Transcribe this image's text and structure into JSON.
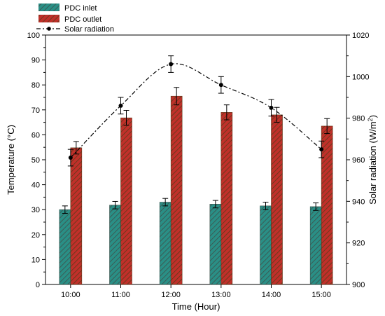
{
  "chart_data": {
    "type": "bar",
    "categories": [
      "10:00",
      "11:00",
      "12:00",
      "13:00",
      "14:00",
      "15:00"
    ],
    "xlabel": "Time (Hour)",
    "ylabel": "Temperature (°C)",
    "y2label_prefix": "Solar radiation (W/m",
    "y2label_sup": "2",
    "y2label_suffix": ")",
    "ylim": [
      0,
      100
    ],
    "y2lim": [
      900,
      1020
    ],
    "yticks": [
      "0",
      "10",
      "20",
      "30",
      "40",
      "50",
      "60",
      "70",
      "80",
      "90",
      "100"
    ],
    "y2ticks": [
      "900",
      "920",
      "940",
      "960",
      "980",
      "1000",
      "1020"
    ],
    "grid": false,
    "legend_position": "top-left",
    "series": [
      {
        "name": "PDC inlet",
        "kind": "bar",
        "axis": "left",
        "color": "#2a8f86",
        "hatch": "#3d4f49",
        "values": [
          30.0,
          31.8,
          33.0,
          32.2,
          31.5,
          31.2
        ],
        "errors": [
          1.5,
          1.5,
          1.5,
          1.5,
          1.5,
          1.5
        ]
      },
      {
        "name": "PDC outlet",
        "kind": "bar",
        "axis": "left",
        "color": "#c0302a",
        "hatch": "#5a3a1a",
        "values": [
          54.8,
          66.8,
          75.5,
          69.0,
          68.0,
          63.5
        ],
        "errors": [
          2.5,
          3.0,
          3.5,
          3.0,
          3.0,
          3.0
        ]
      },
      {
        "name": "Solar radiation",
        "kind": "line",
        "axis": "right",
        "color": "#000000",
        "values": [
          961,
          986,
          1006,
          996,
          985,
          965
        ],
        "errors": [
          4,
          4,
          4,
          4,
          4,
          4
        ]
      }
    ]
  }
}
